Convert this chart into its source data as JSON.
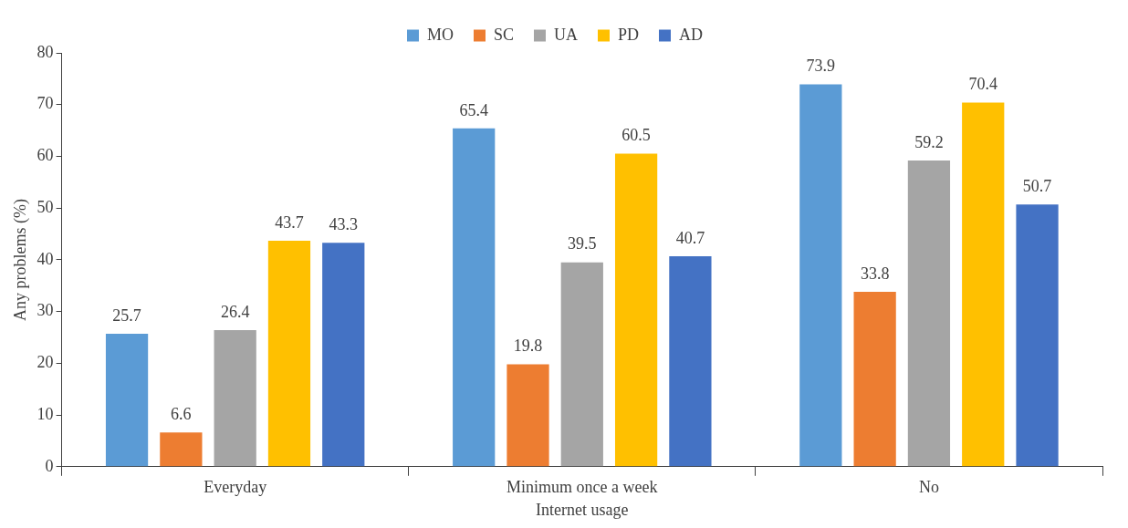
{
  "chart_data": {
    "type": "bar",
    "xlabel": "Internet usage",
    "ylabel": "Any problems (%)",
    "categories": [
      "Everyday",
      "Minimum once a week",
      "No"
    ],
    "series": [
      {
        "name": "MO",
        "color": "#5b9bd5",
        "values": [
          25.7,
          65.4,
          73.9
        ]
      },
      {
        "name": "SC",
        "color": "#ed7d31",
        "values": [
          6.6,
          19.8,
          33.8
        ]
      },
      {
        "name": "UA",
        "color": "#a5a5a5",
        "values": [
          26.4,
          39.5,
          59.2
        ]
      },
      {
        "name": "PD",
        "color": "#ffc000",
        "values": [
          43.7,
          60.5,
          70.4
        ]
      },
      {
        "name": "AD",
        "color": "#4472c4",
        "values": [
          43.3,
          40.7,
          50.7
        ]
      }
    ],
    "ylim": [
      0,
      80
    ],
    "yticks": [
      0,
      10,
      20,
      30,
      40,
      50,
      60,
      70,
      80
    ],
    "grid": false,
    "legend": "top",
    "data_labels": true
  }
}
